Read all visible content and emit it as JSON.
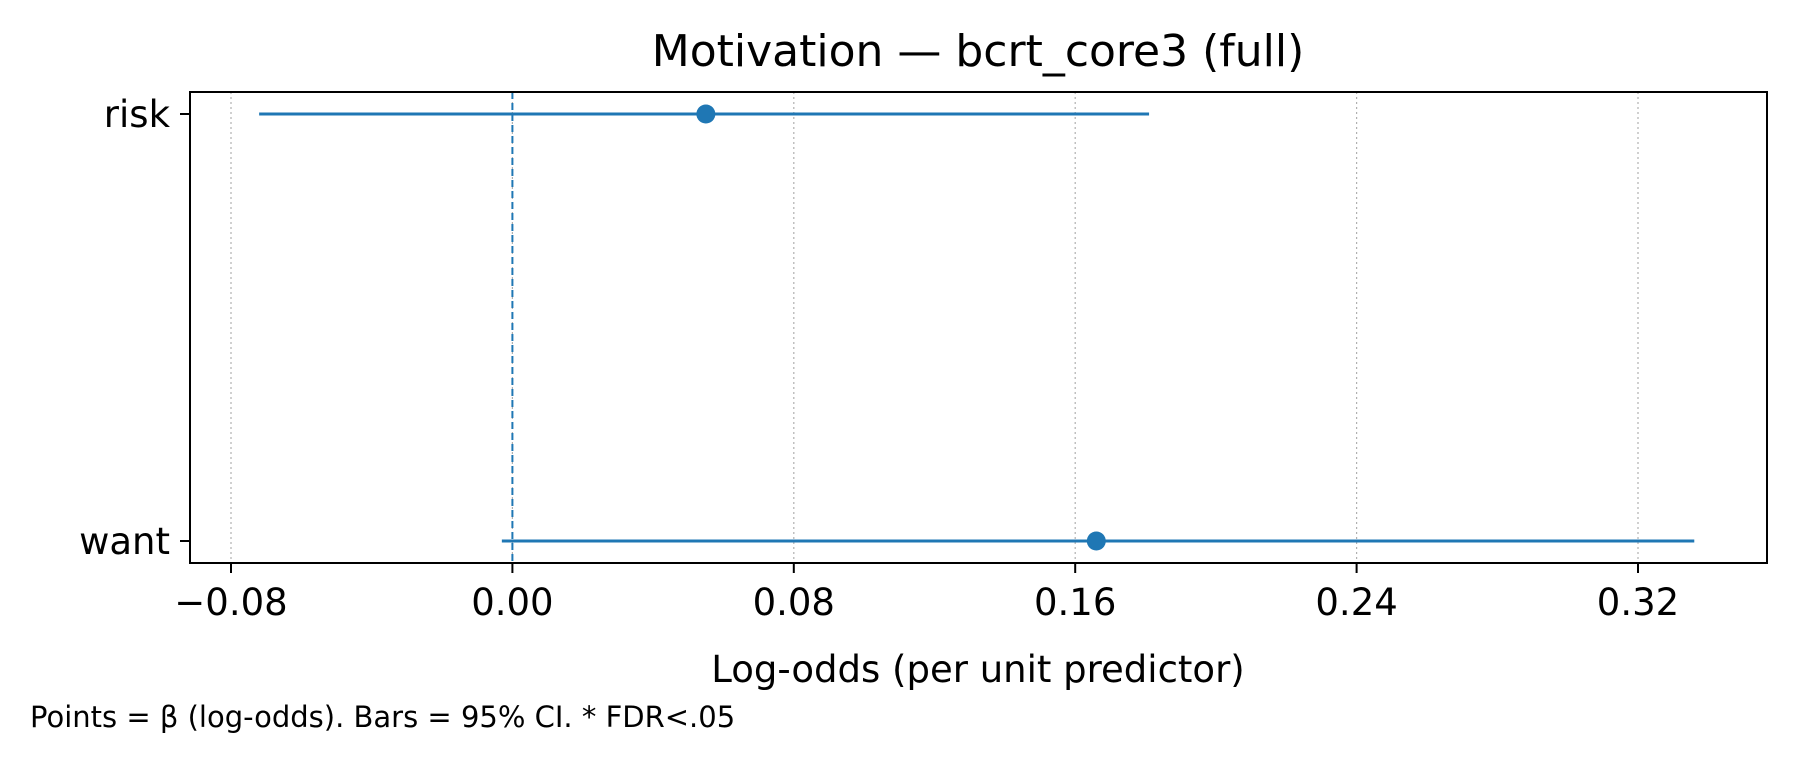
{
  "chart_data": {
    "type": "forest",
    "title": "Motivation — bcrt_core3 (full)",
    "xlabel": "Log-odds (per unit predictor)",
    "ylabel": "",
    "xlim": [
      -0.095,
      0.335
    ],
    "xticks": [
      -0.08,
      0.0,
      0.08,
      0.16,
      0.24,
      0.32
    ],
    "xtick_labels": [
      "−0.08",
      "0.00",
      "0.08",
      "0.16",
      "0.24",
      "0.32"
    ],
    "reference_line": 0.0,
    "grid": "x, dotted",
    "color": "#1f77b4",
    "rows": [
      {
        "label": "risk",
        "beta": 0.055,
        "ci_low": -0.072,
        "ci_high": 0.181
      },
      {
        "label": "want",
        "beta": 0.166,
        "ci_low": -0.003,
        "ci_high": 0.336
      }
    ]
  },
  "footnote": "Points = β (log-odds). Bars = 95% CI. * FDR<.05"
}
